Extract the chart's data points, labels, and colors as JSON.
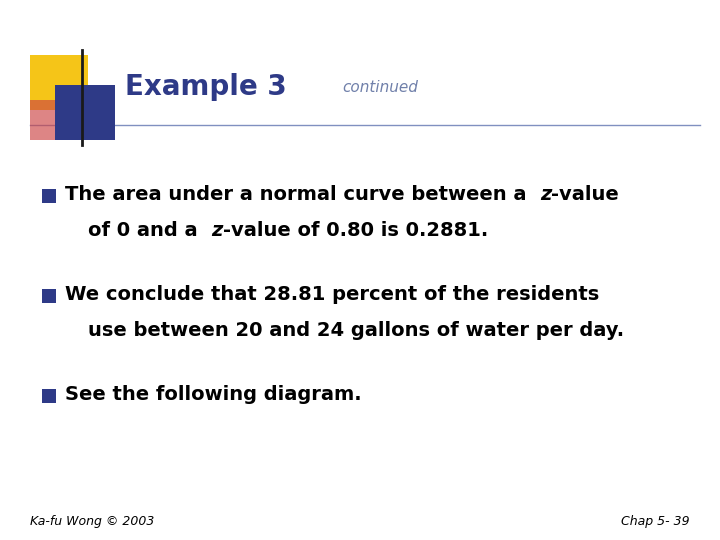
{
  "title_main": "Example 3",
  "title_sub": "continued",
  "title_color": "#2E3A87",
  "title_sub_color": "#7080AA",
  "background_color": "#FFFFFF",
  "bullet_color": "#2E3A87",
  "footer_left": "Ka-fu Wong © 2003",
  "footer_right": "Chap 5- 39",
  "footer_color": "#000000",
  "line_color": "#8090C0",
  "yellow_color": "#F5C518",
  "blue_sq_color": "#2E3A87",
  "red_sq_color": "#CC4444",
  "vline_color": "#1A1A1A",
  "text_color": "#000000",
  "title_fontsize": 20,
  "title_sub_fontsize": 11,
  "body_fontsize": 14,
  "footer_fontsize": 9
}
